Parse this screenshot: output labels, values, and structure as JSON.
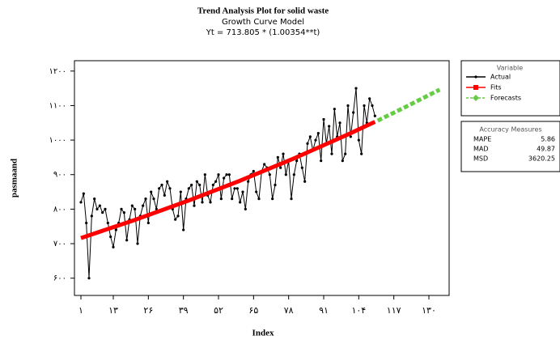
{
  "chart_data": {
    "type": "line",
    "title": "Trend Analysis Plot for solid waste",
    "subtitle": "Growth Curve Model",
    "equation": "Yt = 713.805 * (1.00354**t)",
    "x_label": "Index",
    "y_label": "pasmaand",
    "xlim": [
      -1.4,
      137.5
    ],
    "ylim": [
      550,
      1230
    ],
    "xticks": [
      {
        "value": 1,
        "label": "۱"
      },
      {
        "value": 13,
        "label": "۱۳"
      },
      {
        "value": 26,
        "label": "۲۶"
      },
      {
        "value": 39,
        "label": "۳۹"
      },
      {
        "value": 52,
        "label": "۵۲"
      },
      {
        "value": 65,
        "label": "۶۵"
      },
      {
        "value": 78,
        "label": "۷۸"
      },
      {
        "value": 91,
        "label": "۹۱"
      },
      {
        "value": 104,
        "label": "۱۰۴"
      },
      {
        "value": 117,
        "label": "۱۱۷"
      },
      {
        "value": 130,
        "label": "۱۳۰"
      }
    ],
    "yticks": [
      {
        "value": 600,
        "label": "۶۰۰"
      },
      {
        "value": 700,
        "label": "۷۰۰"
      },
      {
        "value": 800,
        "label": "۸۰۰"
      },
      {
        "value": 900,
        "label": "۹۰۰"
      },
      {
        "value": 1000,
        "label": "۱۰۰۰"
      },
      {
        "value": 1100,
        "label": "۱۱۰۰"
      },
      {
        "value": 1200,
        "label": "۱۲۰۰"
      }
    ],
    "legend_title": "Variable",
    "series": [
      {
        "name": "Actual",
        "color": "#000000",
        "x": [
          1,
          2,
          3,
          4,
          5,
          6,
          7,
          8,
          9,
          10,
          11,
          12,
          13,
          14,
          15,
          16,
          17,
          18,
          19,
          20,
          21,
          22,
          23,
          24,
          25,
          26,
          27,
          28,
          29,
          30,
          31,
          32,
          33,
          34,
          35,
          36,
          37,
          38,
          39,
          40,
          41,
          42,
          43,
          44,
          45,
          46,
          47,
          48,
          49,
          50,
          51,
          52,
          53,
          54,
          55,
          56,
          57,
          58,
          59,
          60,
          61,
          62,
          63,
          64,
          65,
          66,
          67,
          68,
          69,
          70,
          71,
          72,
          73,
          74,
          75,
          76,
          77,
          78,
          79,
          80,
          81,
          82,
          83,
          84,
          85,
          86,
          87,
          88,
          89,
          90,
          91,
          92,
          93,
          94,
          95,
          96,
          97,
          98,
          99,
          100,
          101,
          102,
          103,
          104,
          105,
          106,
          107,
          108,
          109,
          110
        ],
        "values": [
          820,
          845,
          760,
          600,
          780,
          830,
          800,
          810,
          790,
          800,
          760,
          720,
          690,
          740,
          760,
          800,
          790,
          710,
          770,
          810,
          800,
          700,
          780,
          810,
          830,
          760,
          850,
          830,
          800,
          860,
          870,
          840,
          880,
          860,
          800,
          770,
          780,
          850,
          740,
          830,
          860,
          870,
          810,
          880,
          870,
          820,
          900,
          840,
          820,
          870,
          880,
          900,
          830,
          890,
          900,
          900,
          830,
          860,
          860,
          820,
          850,
          800,
          880,
          900,
          910,
          850,
          830,
          910,
          930,
          920,
          900,
          830,
          870,
          950,
          920,
          960,
          900,
          940,
          830,
          900,
          940,
          960,
          920,
          880,
          990,
          1010,
          970,
          1000,
          1020,
          940,
          1060,
          990,
          1040,
          960,
          1090,
          1010,
          1050,
          940,
          960,
          1100,
          1010,
          1080,
          1150,
          1000,
          960,
          1100,
          1050,
          1120,
          1100,
          1070
        ]
      },
      {
        "name": "Fits",
        "color": "#ff0000",
        "x": [
          1,
          20,
          40,
          60,
          80,
          100,
          110
        ],
        "values": [
          716.3,
          766.1,
          822.2,
          882.4,
          947.1,
          1016.4,
          1052.9
        ]
      },
      {
        "name": "Forecasts",
        "color": "#66cc44",
        "x": [
          111,
          120,
          134
        ],
        "values": [
          1056.6,
          1090.8,
          1146.2
        ]
      }
    ],
    "accuracy": {
      "title": "Accuracy Measures",
      "rows": [
        [
          "MAPE",
          5.86
        ],
        [
          "MAD",
          49.87
        ],
        [
          "MSD",
          3620.25
        ]
      ]
    }
  }
}
